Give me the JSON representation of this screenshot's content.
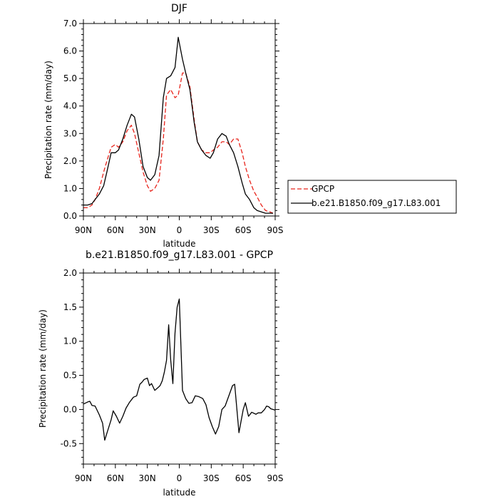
{
  "chart_data": [
    {
      "type": "line",
      "title": "DJF",
      "xlabel": "latitude",
      "ylabel": "Precipitation rate (mm/day)",
      "xlim": [
        90,
        -90
      ],
      "ylim": [
        0,
        7
      ],
      "x_ticks": [
        90,
        60,
        30,
        0,
        -30,
        -60,
        -90
      ],
      "x_tick_labels": [
        "90N",
        "60N",
        "30N",
        "0",
        "30S",
        "60S",
        "90S"
      ],
      "y_ticks": [
        0,
        1,
        2,
        3,
        4,
        5,
        6,
        7
      ],
      "y_tick_labels": [
        "0.0",
        "1.0",
        "2.0",
        "3.0",
        "4.0",
        "5.0",
        "6.0",
        "7.0"
      ],
      "legend": "right",
      "series": [
        {
          "name": "GPCP",
          "color": "#e8241c",
          "dash": "dashed",
          "x": [
            90,
            86,
            82,
            79,
            75,
            71,
            68,
            64,
            60,
            57,
            53,
            49,
            45,
            42,
            38,
            34,
            30,
            27,
            23,
            19,
            15,
            12,
            8,
            4,
            1,
            -3,
            -6,
            -10,
            -14,
            -17,
            -21,
            -25,
            -29,
            -32,
            -36,
            -40,
            -44,
            -47,
            -51,
            -55,
            -59,
            -62,
            -66,
            -70,
            -73,
            -77,
            -81,
            -85,
            -88
          ],
          "values": [
            0.3,
            0.3,
            0.4,
            0.6,
            1.0,
            1.6,
            2.0,
            2.5,
            2.6,
            2.5,
            2.7,
            3.1,
            3.3,
            3.0,
            2.3,
            1.6,
            1.1,
            0.9,
            1.0,
            1.3,
            2.8,
            4.4,
            4.6,
            4.3,
            4.4,
            5.2,
            5.2,
            4.7,
            3.5,
            2.7,
            2.4,
            2.3,
            2.3,
            2.4,
            2.5,
            2.7,
            2.7,
            2.6,
            2.8,
            2.8,
            2.3,
            1.8,
            1.3,
            0.9,
            0.7,
            0.4,
            0.2,
            0.15,
            0.1
          ]
        },
        {
          "name": "b.e21.B1850.f09_g17.L83.001",
          "color": "#000000",
          "dash": "solid",
          "x": [
            90,
            86,
            82,
            79,
            75,
            71,
            68,
            64,
            60,
            57,
            53,
            49,
            45,
            42,
            38,
            34,
            30,
            27,
            23,
            19,
            15,
            12,
            8,
            4,
            1,
            -3,
            -6,
            -10,
            -14,
            -17,
            -21,
            -25,
            -29,
            -32,
            -36,
            -40,
            -44,
            -47,
            -51,
            -55,
            -59,
            -62,
            -66,
            -70,
            -73,
            -77,
            -81,
            -85,
            -88
          ],
          "values": [
            0.4,
            0.4,
            0.45,
            0.6,
            0.8,
            1.1,
            1.6,
            2.3,
            2.3,
            2.4,
            2.8,
            3.3,
            3.7,
            3.6,
            2.8,
            1.8,
            1.4,
            1.3,
            1.5,
            2.2,
            4.3,
            5.0,
            5.1,
            5.4,
            6.5,
            5.7,
            5.2,
            4.6,
            3.4,
            2.7,
            2.4,
            2.2,
            2.1,
            2.3,
            2.8,
            3.0,
            2.9,
            2.6,
            2.3,
            1.8,
            1.2,
            0.8,
            0.6,
            0.3,
            0.2,
            0.15,
            0.1,
            0.1,
            0.1
          ]
        }
      ]
    },
    {
      "type": "line",
      "title": "b.e21.B1850.f09_g17.L83.001 - GPCP",
      "xlabel": "latitude",
      "ylabel": "Precipitation rate (mm/day)",
      "xlim": [
        90,
        -90
      ],
      "ylim": [
        -0.8,
        2.0
      ],
      "x_ticks": [
        90,
        60,
        30,
        0,
        -30,
        -60,
        -90
      ],
      "x_tick_labels": [
        "90N",
        "60N",
        "30N",
        "0",
        "30S",
        "60S",
        "90S"
      ],
      "y_ticks": [
        -0.5,
        0,
        0.5,
        1.0,
        1.5,
        2.0
      ],
      "y_tick_labels": [
        "-0.5",
        "0.0",
        "0.5",
        "1.0",
        "1.5",
        "2.0"
      ],
      "series": [
        {
          "name": "b.e21.B1850.f09_g17.L83.001 - GPCP",
          "color": "#000000",
          "dash": "solid",
          "x": [
            90,
            86,
            84,
            82,
            79,
            75,
            72,
            70,
            67,
            64,
            62,
            59,
            56,
            53,
            50,
            47,
            43,
            40,
            37,
            35,
            33,
            30,
            28,
            26,
            23,
            20,
            18,
            16,
            14,
            12,
            10,
            8,
            6,
            4,
            2,
            0,
            -3,
            -6,
            -9,
            -12,
            -15,
            -18,
            -22,
            -25,
            -28,
            -31,
            -34,
            -37,
            -40,
            -43,
            -47,
            -50,
            -52,
            -56,
            -60,
            -62,
            -65,
            -68,
            -72,
            -74,
            -77,
            -80,
            -82,
            -84,
            -86,
            -88,
            -90
          ],
          "values": [
            0.08,
            0.11,
            0.12,
            0.06,
            0.05,
            -0.08,
            -0.2,
            -0.45,
            -0.3,
            -0.15,
            -0.02,
            -0.1,
            -0.2,
            -0.1,
            0.02,
            0.1,
            0.18,
            0.2,
            0.37,
            0.4,
            0.44,
            0.46,
            0.35,
            0.38,
            0.28,
            0.32,
            0.35,
            0.42,
            0.55,
            0.72,
            1.24,
            0.72,
            0.38,
            1.12,
            1.5,
            1.62,
            0.28,
            0.16,
            0.09,
            0.1,
            0.2,
            0.19,
            0.16,
            0.07,
            -0.12,
            -0.25,
            -0.36,
            -0.25,
            0.0,
            0.05,
            0.22,
            0.35,
            0.37,
            -0.34,
            0.0,
            0.1,
            -0.1,
            -0.04,
            -0.07,
            -0.05,
            -0.05,
            0.0,
            0.05,
            0.04,
            0.01,
            0.0,
            -0.01
          ]
        }
      ]
    }
  ]
}
